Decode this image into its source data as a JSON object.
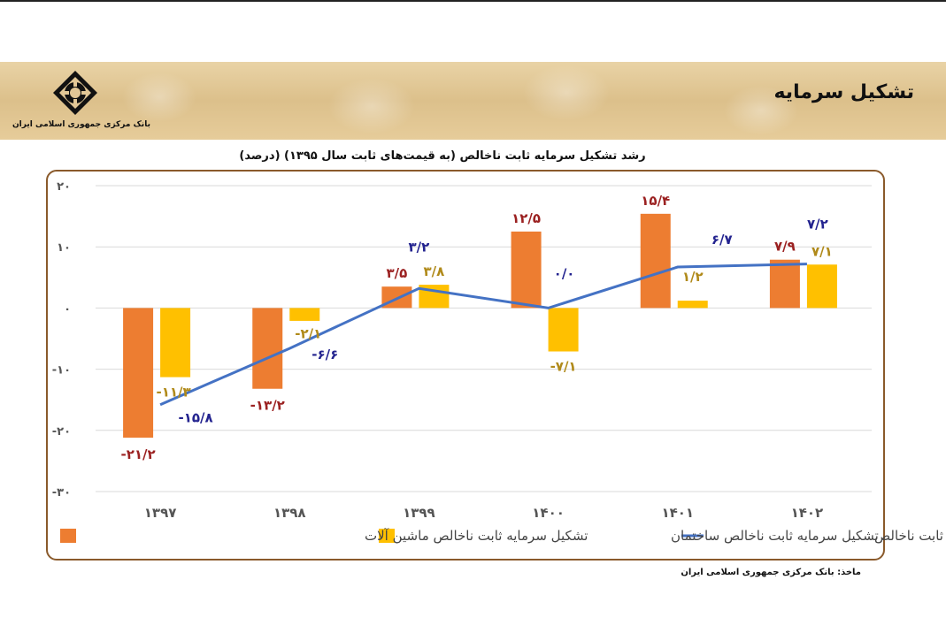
{
  "header": {
    "title": "تشکیل سرمایه",
    "logo_text": "بانک مرکزی جمهوری اسلامی ایران"
  },
  "chart_data": {
    "type": "bar",
    "title": "رشد تشکیل سرمایه ثابت ناخالص (به قیمت‌های ثابت سال ۱۳۹۵) (درصد)",
    "categories": [
      "۱۳۹۷",
      "۱۳۹۸",
      "۱۳۹۹",
      "۱۴۰۰",
      "۱۴۰۱",
      "۱۴۰۲"
    ],
    "ylim": [
      -30,
      20
    ],
    "yticks": [
      20,
      10,
      0,
      -10,
      -20,
      -30
    ],
    "ytick_labels": [
      "۲۰",
      "۱۰",
      "۰",
      "-۱۰",
      "-۲۰",
      "-۳۰"
    ],
    "grid": true,
    "series": [
      {
        "name": "تشکیل سرمایه ثابت ناخالص ماشین آلات",
        "kind": "bar",
        "color": "#ed7d31",
        "values": [
          -21.2,
          -13.2,
          3.5,
          12.5,
          15.4,
          7.9
        ],
        "labels": [
          "-۲۱/۲",
          "-۱۳/۲",
          "۳/۵",
          "۱۲/۵",
          "۱۵/۴",
          "۷/۹"
        ],
        "label_color": "#9b2121"
      },
      {
        "name": "تشکیل سرمایه ثابت ناخالص  ساختمان",
        "kind": "bar",
        "color": "#ffc000",
        "values": [
          -11.3,
          -2.1,
          3.8,
          -7.1,
          1.2,
          7.1
        ],
        "labels": [
          "-۱۱/۳",
          "-۲/۱",
          "۳/۸",
          "-۷/۱",
          "۱/۲",
          "۷/۱"
        ],
        "label_color": "#b08a1a"
      },
      {
        "name": "تشکیل سرمایه ثابت ناخالص",
        "kind": "line",
        "color": "#4472c4",
        "values": [
          -15.8,
          -6.6,
          3.2,
          0.0,
          6.7,
          7.2
        ],
        "labels": [
          "-۱۵/۸",
          "-۶/۶",
          "۳/۲",
          "۰/۰",
          "۶/۷",
          "۷/۲"
        ],
        "label_color": "#23238f"
      }
    ],
    "legend_position": "bottom"
  },
  "source": "ماخذ: بانک مرکزی جمهوری اسلامی ایران"
}
